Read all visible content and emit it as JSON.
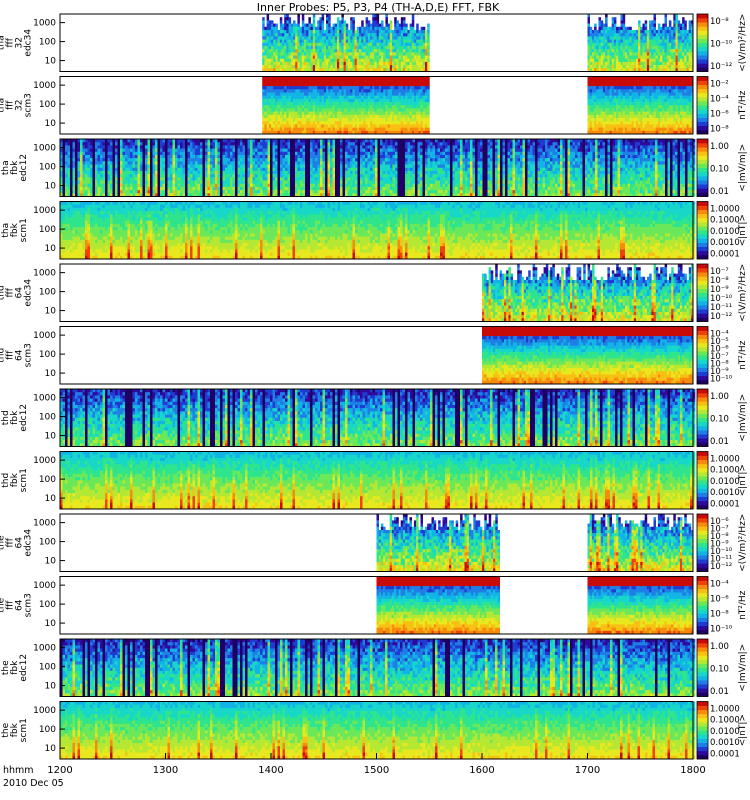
{
  "title": "Inner Probes: P5, P3, P4 (TH-A,D,E) FFT, FBK",
  "colors": {
    "background": "#ffffff",
    "no_data": "#ffffff",
    "frame": "#000000"
  },
  "colormap": [
    "#1f0062",
    "#2d0a9c",
    "#1f3cd2",
    "#1e7ee6",
    "#12b4e6",
    "#17d8c8",
    "#2ee48c",
    "#6ae85a",
    "#b4e832",
    "#e8e81e",
    "#f8c012",
    "#f88a0c",
    "#f04208",
    "#c80a08"
  ],
  "chart_data": {
    "type": "heatmap",
    "x_range": [
      "1200",
      "1800"
    ],
    "x_ticks": [
      "1200",
      "1300",
      "1400",
      "1500",
      "1600",
      "1700",
      "1800"
    ],
    "x_axis_label": "hhmm",
    "date_label": "2010 Dec 05",
    "y_scale": "log",
    "panels": [
      {
        "probe": "tha",
        "ylabel": [
          "tha",
          "fff",
          "32",
          "edc34"
        ],
        "cb_unit": "<(V/m)²/Hz>",
        "cb_ticks": [
          "10⁻⁸",
          "10⁻¹⁰",
          "10⁻¹²"
        ],
        "y_ticks": [
          "1000",
          "100",
          "10"
        ],
        "data_intervals": [
          [
            "1355",
            "1530"
          ],
          [
            "1700",
            "1800"
          ]
        ],
        "style": "burst-e"
      },
      {
        "probe": "tha",
        "ylabel": [
          "tha",
          "fff",
          "32",
          "scm3"
        ],
        "cb_unit": "nT²/Hz",
        "cb_ticks": [
          "10⁻²",
          "10⁻⁴",
          "10⁻⁶",
          "10⁻⁸"
        ],
        "y_ticks": [
          "1000",
          "100",
          "10"
        ],
        "data_intervals": [
          [
            "1355",
            "1530"
          ],
          [
            "1700",
            "1800"
          ]
        ],
        "style": "burst-b"
      },
      {
        "probe": "tha",
        "ylabel": [
          "tha",
          "fbk",
          "edc12"
        ],
        "cb_unit": "<|mV/m|>",
        "cb_ticks": [
          "1.00",
          "0.10",
          "0.01"
        ],
        "y_ticks": [
          "1000",
          "100",
          "10"
        ],
        "data_intervals": [
          [
            "1200",
            "1800"
          ]
        ],
        "style": "fbk-e"
      },
      {
        "probe": "tha",
        "ylabel": [
          "tha",
          "fbk",
          "scm1"
        ],
        "cb_unit": "<|nT|>",
        "cb_ticks": [
          "1.0000",
          "0.1000",
          "0.0100",
          "0.0010",
          "0.0001"
        ],
        "y_ticks": [
          "1000",
          "100",
          "10"
        ],
        "data_intervals": [
          [
            "1200",
            "1800"
          ]
        ],
        "style": "fbk-b"
      },
      {
        "probe": "thd",
        "ylabel": [
          "thd",
          "fff",
          "64",
          "edc34"
        ],
        "cb_unit": "<(V/m)²/Hz>",
        "cb_ticks": [
          "10⁻⁷",
          "10⁻⁸",
          "10⁻⁹",
          "10⁻¹⁰",
          "10⁻¹¹",
          "10⁻¹²"
        ],
        "y_ticks": [
          "1000",
          "100",
          "10"
        ],
        "data_intervals": [
          [
            "1600",
            "1800"
          ]
        ],
        "style": "burst-e"
      },
      {
        "probe": "thd",
        "ylabel": [
          "thd",
          "fff",
          "64",
          "scm3"
        ],
        "cb_unit": "nT²/Hz",
        "cb_ticks": [
          "10⁻⁴",
          "10⁻⁵",
          "10⁻⁶",
          "10⁻⁷",
          "10⁻⁸",
          "10⁻⁹",
          "10⁻¹⁰"
        ],
        "y_ticks": [
          "1000",
          "100",
          "10"
        ],
        "data_intervals": [
          [
            "1600",
            "1800"
          ]
        ],
        "style": "burst-b"
      },
      {
        "probe": "thd",
        "ylabel": [
          "thd",
          "fbk",
          "edc12"
        ],
        "cb_unit": "<|mV/m|>",
        "cb_ticks": [
          "1.00",
          "0.10",
          "0.01"
        ],
        "y_ticks": [
          "1000",
          "100",
          "10"
        ],
        "data_intervals": [
          [
            "1200",
            "1800"
          ]
        ],
        "style": "fbk-e"
      },
      {
        "probe": "thd",
        "ylabel": [
          "thd",
          "fbk",
          "scm1"
        ],
        "cb_unit": "<|nT|>",
        "cb_ticks": [
          "1.0000",
          "0.1000",
          "0.0100",
          "0.0010",
          "0.0001"
        ],
        "y_ticks": [
          "1000",
          "100",
          "10"
        ],
        "data_intervals": [
          [
            "1200",
            "1800"
          ]
        ],
        "style": "fbk-b"
      },
      {
        "probe": "the",
        "ylabel": [
          "the",
          "fff",
          "64",
          "edc34"
        ],
        "cb_unit": "<(V/m)²/Hz>",
        "cb_ticks": [
          "10⁻⁶",
          "10⁻⁷",
          "10⁻⁸",
          "10⁻⁹",
          "10⁻¹⁰",
          "10⁻¹¹",
          "10⁻¹²"
        ],
        "y_ticks": [
          "1000",
          "100",
          "10"
        ],
        "data_intervals": [
          [
            "1500",
            "1610"
          ],
          [
            "1700",
            "1800"
          ]
        ],
        "style": "burst-e"
      },
      {
        "probe": "the",
        "ylabel": [
          "the",
          "fff",
          "64",
          "scm3"
        ],
        "cb_unit": "nT²/Hz",
        "cb_ticks": [
          "10⁻⁴",
          "10⁻⁶",
          "10⁻⁸",
          "10⁻¹⁰"
        ],
        "y_ticks": [
          "1000",
          "100",
          "10"
        ],
        "data_intervals": [
          [
            "1500",
            "1610"
          ],
          [
            "1700",
            "1800"
          ]
        ],
        "style": "burst-b"
      },
      {
        "probe": "the",
        "ylabel": [
          "the",
          "fbk",
          "edc12"
        ],
        "cb_unit": "<|mV/m|>",
        "cb_ticks": [
          "1.00",
          "0.10",
          "0.01"
        ],
        "y_ticks": [
          "1000",
          "100",
          "10"
        ],
        "data_intervals": [
          [
            "1200",
            "1800"
          ]
        ],
        "style": "fbk-e"
      },
      {
        "probe": "the",
        "ylabel": [
          "the",
          "fbk",
          "scm1"
        ],
        "cb_unit": "<|nT|>",
        "cb_ticks": [
          "1.0000",
          "0.1000",
          "0.0100",
          "0.0010",
          "0.0001"
        ],
        "y_ticks": [
          "1000",
          "100",
          "10"
        ],
        "data_intervals": [
          [
            "1200",
            "1800"
          ]
        ],
        "style": "fbk-b"
      }
    ]
  }
}
